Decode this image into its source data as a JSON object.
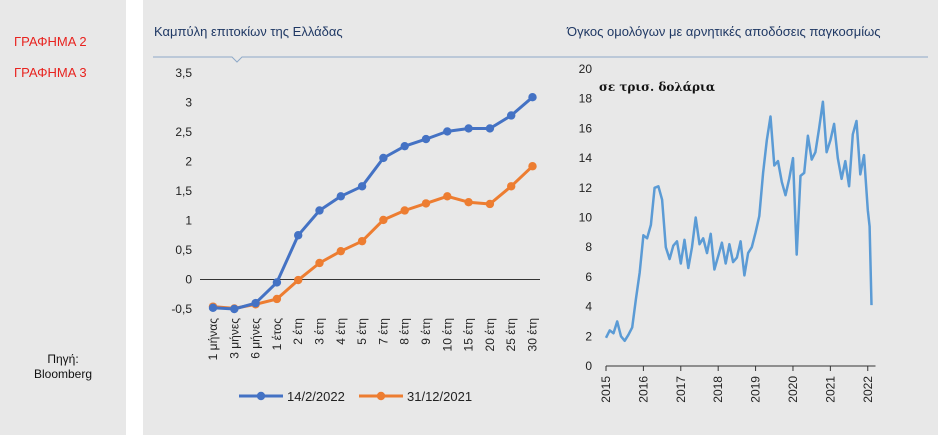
{
  "sidebar": {
    "labels": [
      "ΓΡΑΦΗΜΑ 2",
      "ΓΡΑΦΗΜΑ 3"
    ],
    "source_line1": "Πηγή:",
    "source_line2": "Bloomberg"
  },
  "colors": {
    "series_1": "#4472c4",
    "series_2": "#ed7d31",
    "negative_debt": "#5b9bd5",
    "title": "#1f3864",
    "sidebar_label": "#e8231f"
  },
  "chart_data": [
    {
      "type": "line",
      "title": "Καμπύλη επιτοκίων της Ελλάδας",
      "categories": [
        "1 μήνας",
        "3 μήνες",
        "6 μήνες",
        "1 έτος",
        "2 έτη",
        "3 έτη",
        "4 έτη",
        "5 έτη",
        "7 έτη",
        "8 έτη",
        "9 έτη",
        "10 έτη",
        "15 έτη",
        "20 έτη",
        "25 έτη",
        "30 έτη"
      ],
      "series": [
        {
          "name": "14/2/2022",
          "values": [
            -0.48,
            -0.5,
            -0.4,
            -0.05,
            0.75,
            1.17,
            1.41,
            1.58,
            2.06,
            2.26,
            2.38,
            2.51,
            2.56,
            2.56,
            2.78,
            3.09
          ]
        },
        {
          "name": "31/12/2021",
          "values": [
            -0.46,
            -0.49,
            -0.42,
            -0.33,
            -0.01,
            0.28,
            0.48,
            0.65,
            1.01,
            1.17,
            1.29,
            1.41,
            1.31,
            1.28,
            1.58,
            1.92
          ]
        }
      ],
      "y_ticks": [
        "3,5",
        "3",
        "2,5",
        "2",
        "1,5",
        "1",
        "0,5",
        "0",
        "-0,5"
      ],
      "y_tick_values": [
        3.5,
        3,
        2.5,
        2,
        1.5,
        1,
        0.5,
        0,
        -0.5
      ],
      "ylim": [
        -0.5,
        3.5
      ],
      "legend_position": "bottom",
      "grid": false
    },
    {
      "type": "line",
      "title": "Όγκος ομολόγων με αρνητικές αποδόσεις παγκοσμίως",
      "annotation": "σε τρισ. δολάρια",
      "x_ticks": [
        "2015",
        "2016",
        "2017",
        "2018",
        "2019",
        "2020",
        "2021",
        "2022"
      ],
      "x_tick_values": [
        2015,
        2016,
        2017,
        2018,
        2019,
        2020,
        2021,
        2022
      ],
      "y_ticks": [
        "20",
        "18",
        "16",
        "14",
        "12",
        "10",
        "8",
        "6",
        "4",
        "2",
        "0"
      ],
      "y_tick_values": [
        20,
        18,
        16,
        14,
        12,
        10,
        8,
        6,
        4,
        2,
        0
      ],
      "ylim": [
        0,
        20
      ],
      "xlim": [
        2015,
        2022.1
      ],
      "grid": false,
      "series": [
        {
          "x": [
            2015.0,
            2015.1,
            2015.2,
            2015.3,
            2015.4,
            2015.5,
            2015.6,
            2015.7,
            2015.8,
            2015.9,
            2016.0,
            2016.1,
            2016.2,
            2016.3,
            2016.4,
            2016.5,
            2016.6,
            2016.7,
            2016.8,
            2016.9,
            2017.0,
            2017.1,
            2017.2,
            2017.3,
            2017.4,
            2017.5,
            2017.6,
            2017.7,
            2017.8,
            2017.9,
            2018.0,
            2018.1,
            2018.2,
            2018.3,
            2018.4,
            2018.5,
            2018.6,
            2018.7,
            2018.8,
            2018.9,
            2019.0,
            2019.1,
            2019.2,
            2019.3,
            2019.4,
            2019.5,
            2019.6,
            2019.7,
            2019.8,
            2019.9,
            2020.0,
            2020.1,
            2020.2,
            2020.3,
            2020.4,
            2020.5,
            2020.6,
            2020.7,
            2020.8,
            2020.9,
            2021.0,
            2021.1,
            2021.2,
            2021.3,
            2021.4,
            2021.5,
            2021.6,
            2021.7,
            2021.8,
            2021.9,
            2022.0,
            2022.05,
            2022.1
          ],
          "values": [
            1.9,
            2.4,
            2.2,
            3.0,
            2.0,
            1.7,
            2.1,
            2.6,
            4.5,
            6.3,
            8.8,
            8.6,
            9.5,
            12.0,
            12.1,
            11.2,
            8.0,
            7.2,
            8.1,
            8.4,
            6.9,
            8.5,
            6.6,
            8.0,
            10.0,
            8.2,
            8.6,
            7.6,
            8.9,
            6.5,
            7.4,
            8.3,
            6.9,
            8.2,
            7.0,
            7.3,
            8.4,
            6.1,
            7.6,
            8.0,
            9.0,
            10.1,
            13.0,
            15.2,
            16.8,
            13.5,
            13.8,
            12.4,
            11.5,
            12.6,
            14.0,
            7.5,
            12.8,
            13.0,
            15.5,
            13.9,
            14.4,
            16.0,
            17.8,
            14.4,
            15.2,
            16.3,
            14.0,
            12.6,
            13.8,
            12.1,
            15.6,
            16.5,
            12.9,
            14.2,
            10.5,
            9.4,
            4.1
          ]
        }
      ]
    }
  ]
}
